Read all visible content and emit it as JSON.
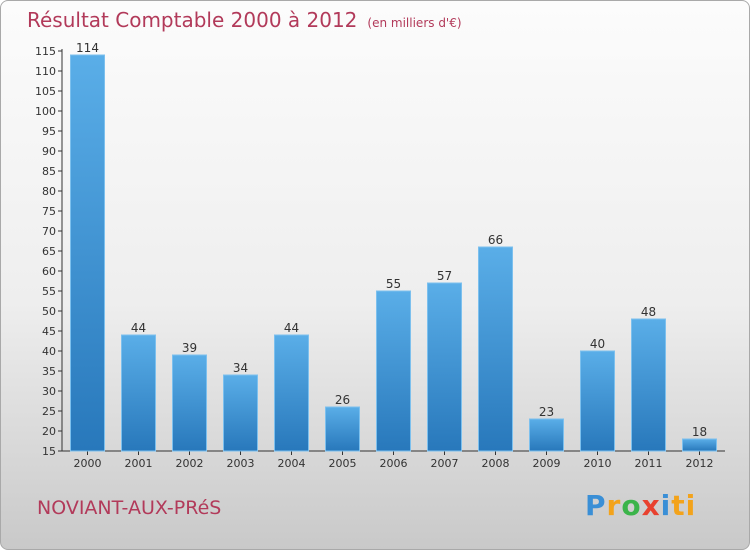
{
  "header": {
    "title": "Résultat Comptable 2000 à 2012",
    "unit": "(en milliers d'€)"
  },
  "footer": {
    "town": "NOVIANT-AUX-PRéS",
    "brand_letters": [
      "P",
      "r",
      "o",
      "x",
      "i",
      "ti"
    ]
  },
  "colors": {
    "title": "#b23a5a",
    "bar_light": "#5aaee8",
    "bar_dark": "#2878bb"
  },
  "chart_data": {
    "type": "bar",
    "title": "Résultat Comptable 2000 à 2012",
    "categories": [
      "2000",
      "2001",
      "2002",
      "2003",
      "2004",
      "2005",
      "2006",
      "2007",
      "2008",
      "2009",
      "2010",
      "2011",
      "2012"
    ],
    "values": [
      114,
      44,
      39,
      34,
      44,
      26,
      55,
      57,
      66,
      23,
      40,
      48,
      18
    ],
    "ylim": [
      15,
      115
    ],
    "yticks": [
      15,
      20,
      25,
      30,
      35,
      40,
      45,
      50,
      55,
      60,
      65,
      70,
      75,
      80,
      85,
      90,
      95,
      100,
      105,
      110,
      115
    ],
    "grid": false,
    "xlabel": "",
    "ylabel": ""
  }
}
